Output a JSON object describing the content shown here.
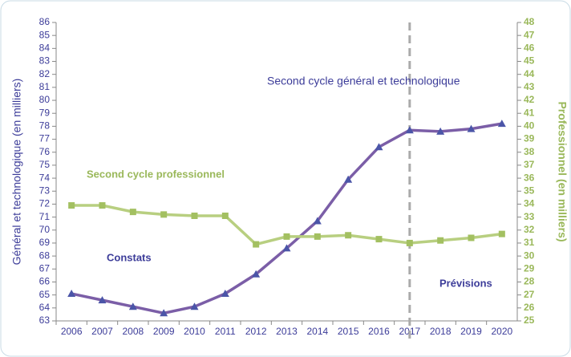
{
  "chart_data": {
    "type": "line",
    "categories": [
      "2006",
      "2007",
      "2008",
      "2009",
      "2010",
      "2011",
      "2012",
      "2013",
      "2014",
      "2015",
      "2016",
      "2017",
      "2018",
      "2019",
      "2020"
    ],
    "series": [
      {
        "name": "Second cycle  général et technologique",
        "color": "#7b5ea7",
        "marker_color": "#4b55a8",
        "values": [
          65.1,
          64.6,
          64.1,
          63.6,
          64.1,
          65.1,
          66.6,
          68.6,
          70.7,
          73.9,
          76.4,
          77.7,
          77.6,
          77.8,
          78.2
        ]
      },
      {
        "name": "Second cycle professionnel",
        "color": "#b8cf80",
        "marker_color": "#a3c061",
        "axis": "y2",
        "values": [
          33.9,
          33.9,
          33.4,
          33.2,
          33.1,
          33.1,
          30.9,
          31.5,
          31.5,
          31.6,
          31.3,
          31.0,
          31.2,
          31.4,
          31.7
        ]
      }
    ],
    "ylabel": "Général et technologique (en milliers)",
    "y2label": "Professionnel (en milliers)",
    "ylim": [
      63,
      86
    ],
    "yticks": [
      63,
      64,
      65,
      66,
      67,
      68,
      69,
      70,
      71,
      72,
      73,
      74,
      75,
      76,
      77,
      78,
      79,
      80,
      81,
      82,
      83,
      84,
      85,
      86
    ],
    "y2lim": [
      25,
      48
    ],
    "y2ticks": [
      25,
      26,
      27,
      28,
      29,
      30,
      31,
      32,
      33,
      34,
      35,
      36,
      37,
      38,
      39,
      40,
      41,
      42,
      43,
      44,
      45,
      46,
      47,
      48
    ],
    "annotations": [
      "Constats",
      "Prévisions"
    ],
    "divider": "2017"
  }
}
